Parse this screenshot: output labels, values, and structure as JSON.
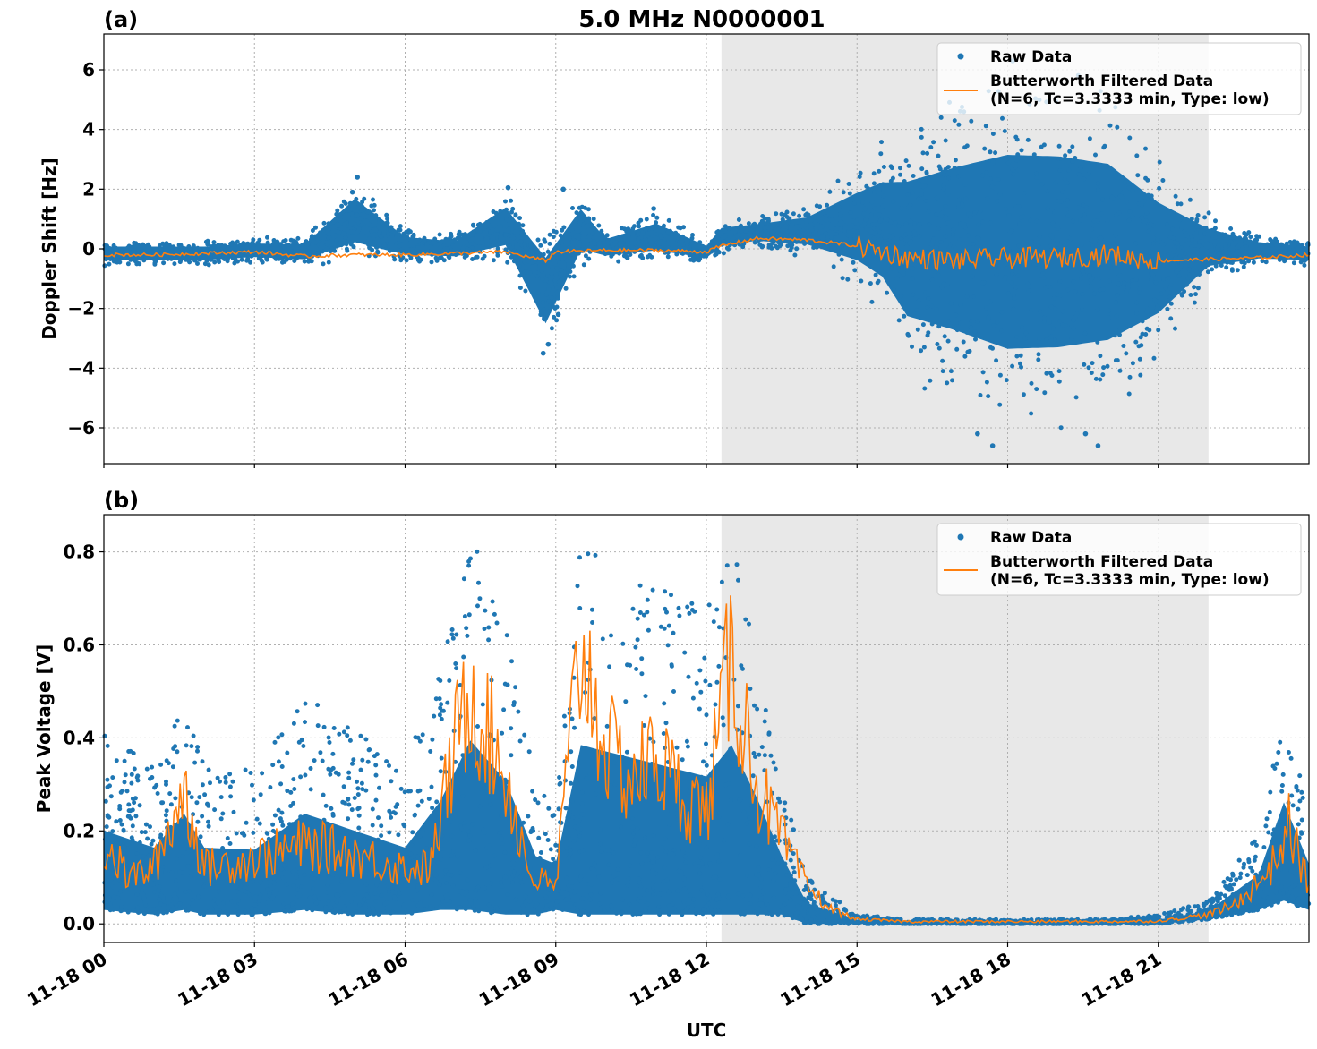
{
  "figure": {
    "title": "5.0 MHz N0000001",
    "xlabel": "UTC"
  },
  "chart_data": [
    {
      "type": "scatter",
      "panel_label": "(a)",
      "ylabel": "Doppler Shift [Hz]",
      "xlim": [
        "11-18 00:00",
        "11-19 00:00"
      ],
      "ylim": [
        -7.2,
        7.2
      ],
      "xticks": [
        "11-18 00",
        "11-18 03",
        "11-18 06",
        "11-18 09",
        "11-18 12",
        "11-18 15",
        "11-18 18",
        "11-18 21"
      ],
      "yticks": [
        "−6",
        "−4",
        "−2",
        "0",
        "2",
        "4",
        "6"
      ],
      "ytick_values": [
        -6,
        -4,
        -2,
        0,
        2,
        4,
        6
      ],
      "grid": true,
      "legend_position": "top-right",
      "shaded_region": {
        "start": "11-18 12:18",
        "end": "11-18 22:00"
      },
      "series": [
        {
          "name": "Raw Data",
          "style": "scatter",
          "color": "#1f77b4",
          "x_hours": [
            0,
            1,
            2,
            3,
            4,
            5,
            6,
            7,
            8,
            8.8,
            9.5,
            10,
            11,
            12,
            12.3,
            13,
            14,
            15,
            15.5,
            16,
            17,
            18,
            19,
            20,
            21,
            22,
            23,
            24
          ],
          "low": [
            -0.6,
            -0.6,
            -0.6,
            -0.5,
            -0.6,
            -0.5,
            -0.5,
            -0.5,
            -0.5,
            -3.6,
            -0.7,
            -0.5,
            -0.5,
            -0.5,
            -0.2,
            0,
            -0.3,
            -1.5,
            -2.5,
            -4.5,
            -5.5,
            -6.6,
            -6.5,
            -6.0,
            -4.0,
            -1.2,
            -0.6,
            -0.6
          ],
          "high": [
            0.3,
            0.3,
            0.3,
            0.4,
            0.4,
            2.4,
            0.7,
            0.5,
            2.0,
            0.8,
            2.0,
            0.6,
            1.3,
            0.3,
            1.0,
            1.1,
            1.5,
            3.0,
            3.8,
            4.5,
            5.5,
            6.4,
            6.3,
            5.8,
            3.4,
            1.3,
            0.5,
            0.3
          ],
          "outliers": [
            [
              5.05,
              2.4
            ],
            [
              4.95,
              1.9
            ],
            [
              8.05,
              2.05
            ],
            [
              9.15,
              2.0
            ],
            [
              8.75,
              -3.5
            ],
            [
              8.85,
              -3.2
            ],
            [
              9.05,
              -2.2
            ],
            [
              10.95,
              1.35
            ],
            [
              17.4,
              -6.2
            ],
            [
              17.7,
              -6.6
            ],
            [
              19.55,
              -6.2
            ],
            [
              19.8,
              -6.6
            ],
            [
              18.1,
              6.3
            ]
          ]
        },
        {
          "name": "Butterworth Filtered Data\n(N=6, Tc=3.3333 min, Type: low)",
          "style": "line",
          "color": "#ff7f0e",
          "x_hours": [
            0,
            1,
            2,
            3,
            4,
            5,
            6,
            7,
            8,
            8.8,
            9,
            10,
            11,
            12,
            12.3,
            13,
            14,
            15,
            16,
            17,
            18,
            19,
            20,
            21,
            22,
            23,
            24
          ],
          "y": [
            -0.2,
            -0.2,
            -0.15,
            -0.1,
            -0.25,
            -0.2,
            -0.2,
            -0.15,
            -0.1,
            -0.4,
            -0.1,
            -0.05,
            -0.05,
            -0.1,
            0.1,
            0.35,
            0.3,
            0.1,
            -0.3,
            -0.4,
            -0.3,
            -0.3,
            -0.2,
            -0.4,
            -0.35,
            -0.3,
            -0.2
          ]
        }
      ]
    },
    {
      "type": "scatter",
      "panel_label": "(b)",
      "ylabel": "Peak Voltage [V]",
      "xlim": [
        "11-18 00:00",
        "11-19 00:00"
      ],
      "ylim": [
        -0.04,
        0.88
      ],
      "xticks": [
        "11-18 00",
        "11-18 03",
        "11-18 06",
        "11-18 09",
        "11-18 12",
        "11-18 15",
        "11-18 18",
        "11-18 21"
      ],
      "yticks": [
        "0.0",
        "0.2",
        "0.4",
        "0.6",
        "0.8"
      ],
      "ytick_values": [
        0,
        0.2,
        0.4,
        0.6,
        0.8
      ],
      "grid": true,
      "legend_position": "top-right",
      "shaded_region": {
        "start": "11-18 12:18",
        "end": "11-18 22:00"
      },
      "series": [
        {
          "name": "Raw Data",
          "style": "scatter",
          "color": "#1f77b4",
          "x_hours": [
            0,
            1,
            1.6,
            2,
            3,
            4,
            5,
            6,
            6.7,
            7.3,
            8,
            8.6,
            9,
            9.5,
            10,
            11,
            12,
            12.5,
            13,
            13.5,
            14,
            15,
            16,
            18,
            20,
            21,
            22,
            23,
            23.5,
            24
          ],
          "low": [
            0.03,
            0.02,
            0.03,
            0.02,
            0.02,
            0.03,
            0.02,
            0.02,
            0.03,
            0.03,
            0.02,
            0.02,
            0.03,
            0.02,
            0.02,
            0.02,
            0.02,
            0.02,
            0.02,
            0.02,
            0.0,
            0.0,
            0.0,
            0.0,
            0.0,
            0.0,
            0.01,
            0.03,
            0.05,
            0.03
          ],
          "high": [
            0.41,
            0.34,
            0.49,
            0.34,
            0.33,
            0.49,
            0.42,
            0.34,
            0.55,
            0.84,
            0.66,
            0.3,
            0.25,
            0.83,
            0.8,
            0.74,
            0.68,
            0.83,
            0.58,
            0.3,
            0.1,
            0.02,
            0.01,
            0.01,
            0.01,
            0.02,
            0.05,
            0.2,
            0.52,
            0.25
          ]
        },
        {
          "name": "Butterworth Filtered Data\n(N=6, Tc=3.3333 min, Type: low)",
          "style": "line",
          "color": "#ff7f0e",
          "x_hours": [
            0,
            0.5,
            1,
            1.6,
            2,
            3,
            4,
            5,
            6,
            6.5,
            7,
            7.3,
            8,
            8.5,
            9,
            9.3,
            9.5,
            10,
            10.5,
            11,
            11.5,
            12,
            12.5,
            13,
            13.5,
            14,
            14.5,
            15,
            16,
            18,
            20,
            21,
            22,
            22.5,
            23,
            23.3,
            23.6,
            24
          ],
          "y": [
            0.17,
            0.1,
            0.12,
            0.29,
            0.12,
            0.14,
            0.17,
            0.15,
            0.12,
            0.12,
            0.38,
            0.51,
            0.32,
            0.1,
            0.08,
            0.4,
            0.6,
            0.38,
            0.31,
            0.36,
            0.28,
            0.24,
            0.58,
            0.3,
            0.18,
            0.08,
            0.03,
            0.01,
            0.005,
            0.005,
            0.005,
            0.006,
            0.02,
            0.04,
            0.09,
            0.13,
            0.21,
            0.08
          ]
        }
      ]
    }
  ]
}
